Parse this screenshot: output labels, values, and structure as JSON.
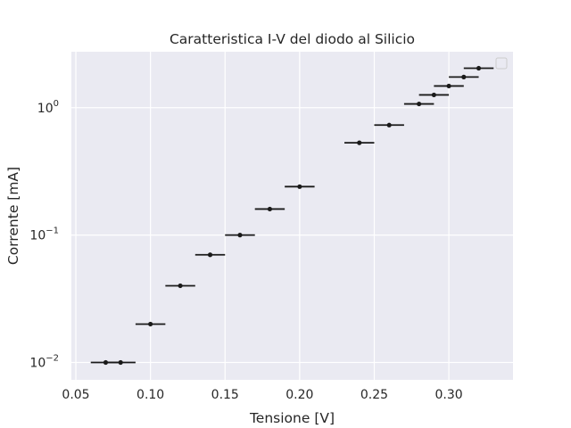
{
  "chart_data": {
    "type": "scatter",
    "title": "Caratteristica I-V del diodo al Silicio",
    "xlabel": "Tensione [V]",
    "ylabel": "Corrente [mA]",
    "xscale": "linear",
    "yscale": "log",
    "xlim": [
      0.047,
      0.343
    ],
    "ylim": [
      0.0073,
      2.75
    ],
    "x_ticks": [
      0.05,
      0.1,
      0.15,
      0.2,
      0.25,
      0.3
    ],
    "x_tick_labels": [
      "0.05",
      "0.10",
      "0.15",
      "0.20",
      "0.25",
      "0.30"
    ],
    "y_ticks": [
      0.01,
      0.1,
      1
    ],
    "y_tick_labels": [
      {
        "base": "10",
        "exp": "−2"
      },
      {
        "base": "10",
        "exp": "−1"
      },
      {
        "base": "10",
        "exp": "0"
      }
    ],
    "grid": true,
    "legend": "top-right (empty)",
    "colors": {
      "background": "#eaeaf2",
      "grid": "#ffffff",
      "marker": "#1a1a1a"
    },
    "series": [
      {
        "x": [
          0.07,
          0.08,
          0.1,
          0.12,
          0.14,
          0.16,
          0.18,
          0.2,
          0.24,
          0.26,
          0.28,
          0.29,
          0.3,
          0.31,
          0.32
        ],
        "y": [
          0.01,
          0.01,
          0.02,
          0.04,
          0.07,
          0.1,
          0.16,
          0.24,
          0.53,
          0.73,
          1.07,
          1.26,
          1.48,
          1.74,
          2.04
        ],
        "xerr": 0.01
      }
    ]
  }
}
